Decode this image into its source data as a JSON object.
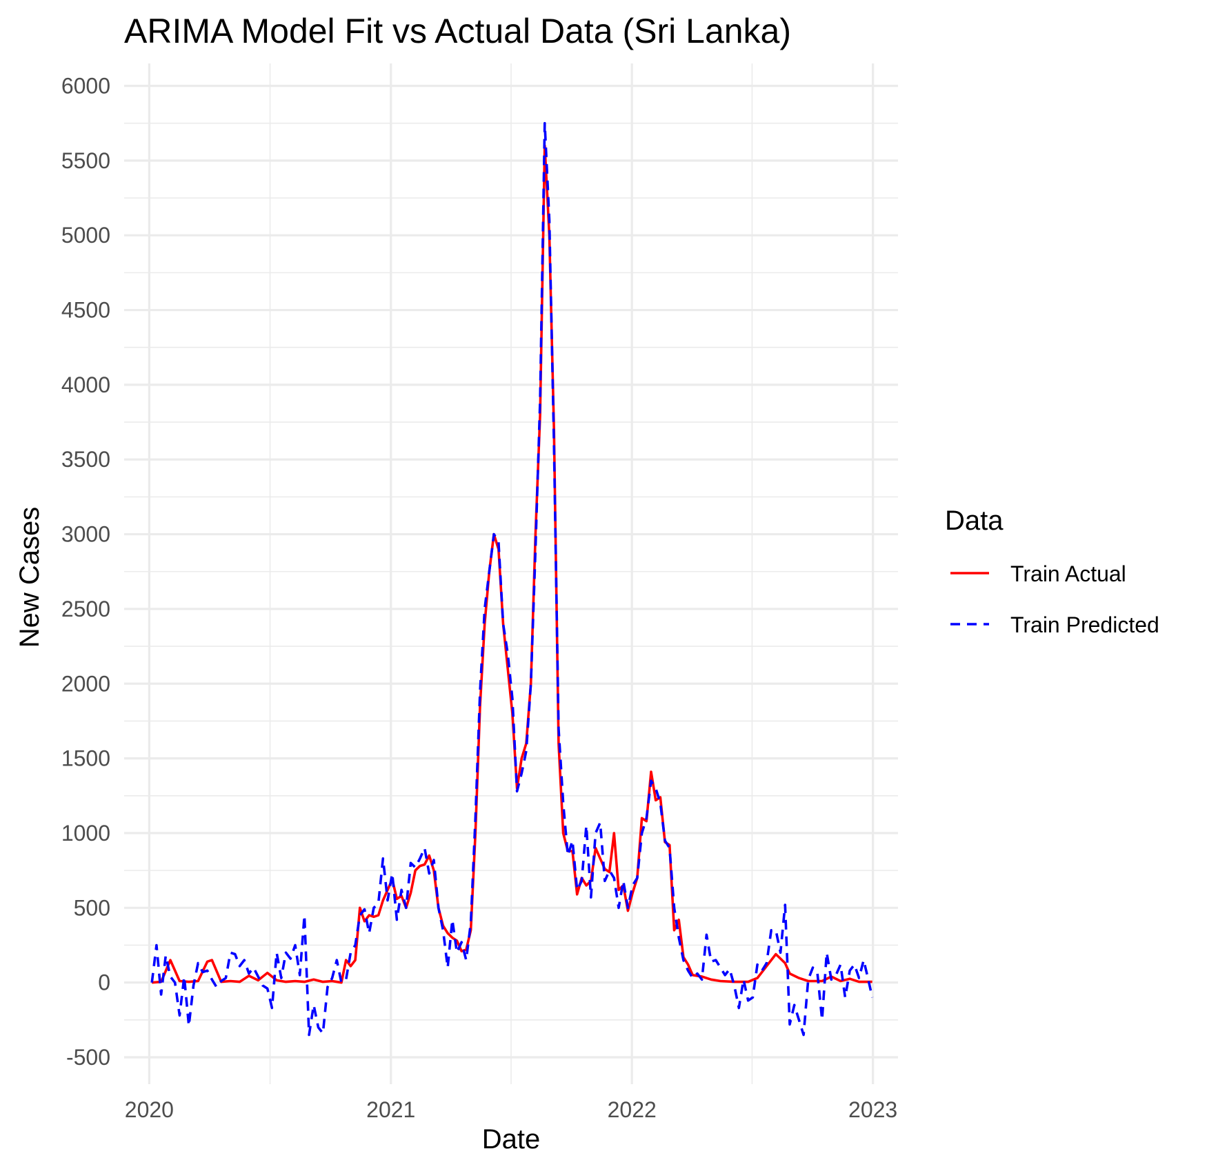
{
  "chart_data": {
    "type": "line",
    "title": "ARIMA Model Fit vs Actual Data (Sri Lanka)",
    "xlabel": "Date",
    "ylabel": "New Cases",
    "x_ticks": [
      "2020",
      "2021",
      "2022",
      "2023"
    ],
    "y_ticks": [
      "-500",
      "0",
      "500",
      "1000",
      "1500",
      "2000",
      "2500",
      "3000",
      "3500",
      "4000",
      "4500",
      "5000",
      "5500",
      "6000"
    ],
    "xlim": [
      "2019-11-24",
      "2023-02-08"
    ],
    "ylim": [
      -680,
      6150
    ],
    "grid": true,
    "legend": {
      "title": "Data",
      "position": "right"
    },
    "series": [
      {
        "name": "Train Actual",
        "color": "#ff0000",
        "linestyle": "solid",
        "points": [
          [
            "2020-01-05",
            0
          ],
          [
            "2020-01-19",
            5
          ],
          [
            "2020-02-02",
            150
          ],
          [
            "2020-02-16",
            10
          ],
          [
            "2020-03-01",
            5
          ],
          [
            "2020-03-15",
            10
          ],
          [
            "2020-03-29",
            140
          ],
          [
            "2020-04-05",
            150
          ],
          [
            "2020-04-19",
            5
          ],
          [
            "2020-05-03",
            10
          ],
          [
            "2020-05-17",
            5
          ],
          [
            "2020-05-31",
            45
          ],
          [
            "2020-06-14",
            15
          ],
          [
            "2020-06-28",
            65
          ],
          [
            "2020-07-12",
            15
          ],
          [
            "2020-07-26",
            5
          ],
          [
            "2020-08-09",
            10
          ],
          [
            "2020-08-23",
            5
          ],
          [
            "2020-09-06",
            20
          ],
          [
            "2020-09-20",
            5
          ],
          [
            "2020-10-04",
            10
          ],
          [
            "2020-10-18",
            0
          ],
          [
            "2020-10-25",
            150
          ],
          [
            "2020-11-01",
            110
          ],
          [
            "2020-11-08",
            150
          ],
          [
            "2020-11-15",
            500
          ],
          [
            "2020-11-22",
            410
          ],
          [
            "2020-11-29",
            450
          ],
          [
            "2020-12-06",
            440
          ],
          [
            "2020-12-13",
            450
          ],
          [
            "2020-12-20",
            550
          ],
          [
            "2020-12-27",
            620
          ],
          [
            "2021-01-03",
            690
          ],
          [
            "2021-01-10",
            560
          ],
          [
            "2021-01-17",
            580
          ],
          [
            "2021-01-24",
            500
          ],
          [
            "2021-01-31",
            600
          ],
          [
            "2021-02-07",
            750
          ],
          [
            "2021-02-14",
            780
          ],
          [
            "2021-02-21",
            790
          ],
          [
            "2021-02-28",
            850
          ],
          [
            "2021-03-07",
            750
          ],
          [
            "2021-03-14",
            500
          ],
          [
            "2021-03-21",
            380
          ],
          [
            "2021-03-28",
            330
          ],
          [
            "2021-04-04",
            300
          ],
          [
            "2021-04-11",
            280
          ],
          [
            "2021-04-18",
            210
          ],
          [
            "2021-04-25",
            220
          ],
          [
            "2021-05-02",
            350
          ],
          [
            "2021-05-09",
            1000
          ],
          [
            "2021-05-16",
            1850
          ],
          [
            "2021-05-23",
            2400
          ],
          [
            "2021-05-30",
            2750
          ],
          [
            "2021-06-06",
            3000
          ],
          [
            "2021-06-13",
            2900
          ],
          [
            "2021-06-20",
            2400
          ],
          [
            "2021-06-27",
            2100
          ],
          [
            "2021-07-04",
            1800
          ],
          [
            "2021-07-11",
            1300
          ],
          [
            "2021-07-18",
            1500
          ],
          [
            "2021-07-25",
            1600
          ],
          [
            "2021-08-01",
            2000
          ],
          [
            "2021-08-08",
            3000
          ],
          [
            "2021-08-15",
            3800
          ],
          [
            "2021-08-22",
            5600
          ],
          [
            "2021-08-29",
            5000
          ],
          [
            "2021-09-05",
            3700
          ],
          [
            "2021-09-12",
            1600
          ],
          [
            "2021-09-19",
            1000
          ],
          [
            "2021-09-26",
            880
          ],
          [
            "2021-10-03",
            880
          ],
          [
            "2021-10-10",
            590
          ],
          [
            "2021-10-17",
            700
          ],
          [
            "2021-10-24",
            650
          ],
          [
            "2021-10-31",
            680
          ],
          [
            "2021-11-07",
            900
          ],
          [
            "2021-11-14",
            830
          ],
          [
            "2021-11-21",
            760
          ],
          [
            "2021-11-28",
            740
          ],
          [
            "2021-12-05",
            1000
          ],
          [
            "2021-12-12",
            620
          ],
          [
            "2021-12-19",
            650
          ],
          [
            "2021-12-26",
            480
          ],
          [
            "2022-01-02",
            600
          ],
          [
            "2022-01-09",
            700
          ],
          [
            "2022-01-16",
            1100
          ],
          [
            "2022-01-23",
            1080
          ],
          [
            "2022-01-30",
            1410
          ],
          [
            "2022-02-06",
            1220
          ],
          [
            "2022-02-13",
            1240
          ],
          [
            "2022-02-20",
            940
          ],
          [
            "2022-02-27",
            920
          ],
          [
            "2022-03-06",
            350
          ],
          [
            "2022-03-13",
            420
          ],
          [
            "2022-03-20",
            170
          ],
          [
            "2022-03-27",
            120
          ],
          [
            "2022-04-03",
            50
          ],
          [
            "2022-04-17",
            40
          ],
          [
            "2022-05-01",
            20
          ],
          [
            "2022-05-15",
            10
          ],
          [
            "2022-06-05",
            5
          ],
          [
            "2022-06-26",
            5
          ],
          [
            "2022-07-10",
            30
          ],
          [
            "2022-07-24",
            110
          ],
          [
            "2022-08-07",
            190
          ],
          [
            "2022-08-21",
            130
          ],
          [
            "2022-08-28",
            60
          ],
          [
            "2022-09-11",
            30
          ],
          [
            "2022-09-25",
            10
          ],
          [
            "2022-10-16",
            10
          ],
          [
            "2022-10-30",
            40
          ],
          [
            "2022-11-13",
            10
          ],
          [
            "2022-11-27",
            25
          ],
          [
            "2022-12-11",
            5
          ],
          [
            "2022-12-31",
            5
          ]
        ]
      },
      {
        "name": "Train Predicted",
        "color": "#0000ff",
        "linestyle": "dashed",
        "points": [
          [
            "2020-01-05",
            0
          ],
          [
            "2020-01-12",
            250
          ],
          [
            "2020-01-19",
            -80
          ],
          [
            "2020-01-26",
            180
          ],
          [
            "2020-02-02",
            40
          ],
          [
            "2020-02-09",
            0
          ],
          [
            "2020-02-16",
            -220
          ],
          [
            "2020-02-23",
            40
          ],
          [
            "2020-03-01",
            -290
          ],
          [
            "2020-03-08",
            -20
          ],
          [
            "2020-03-15",
            130
          ],
          [
            "2020-03-22",
            70
          ],
          [
            "2020-03-29",
            80
          ],
          [
            "2020-04-05",
            20
          ],
          [
            "2020-04-12",
            -30
          ],
          [
            "2020-04-19",
            10
          ],
          [
            "2020-04-26",
            30
          ],
          [
            "2020-05-03",
            200
          ],
          [
            "2020-05-10",
            190
          ],
          [
            "2020-05-17",
            110
          ],
          [
            "2020-05-24",
            150
          ],
          [
            "2020-05-31",
            60
          ],
          [
            "2020-06-07",
            100
          ],
          [
            "2020-06-14",
            40
          ],
          [
            "2020-06-21",
            -20
          ],
          [
            "2020-06-28",
            -40
          ],
          [
            "2020-07-05",
            -170
          ],
          [
            "2020-07-12",
            200
          ],
          [
            "2020-07-19",
            30
          ],
          [
            "2020-07-26",
            200
          ],
          [
            "2020-08-02",
            160
          ],
          [
            "2020-08-09",
            250
          ],
          [
            "2020-08-16",
            50
          ],
          [
            "2020-08-23",
            450
          ],
          [
            "2020-08-30",
            -350
          ],
          [
            "2020-09-06",
            -150
          ],
          [
            "2020-09-13",
            -300
          ],
          [
            "2020-09-20",
            -340
          ],
          [
            "2020-09-27",
            -30
          ],
          [
            "2020-10-04",
            30
          ],
          [
            "2020-10-11",
            150
          ],
          [
            "2020-10-18",
            0
          ],
          [
            "2020-10-25",
            20
          ],
          [
            "2020-11-01",
            200
          ],
          [
            "2020-11-08",
            250
          ],
          [
            "2020-11-15",
            450
          ],
          [
            "2020-11-22",
            490
          ],
          [
            "2020-11-29",
            330
          ],
          [
            "2020-12-06",
            500
          ],
          [
            "2020-12-13",
            530
          ],
          [
            "2020-12-20",
            830
          ],
          [
            "2020-12-27",
            550
          ],
          [
            "2021-01-03",
            730
          ],
          [
            "2021-01-10",
            420
          ],
          [
            "2021-01-17",
            620
          ],
          [
            "2021-01-24",
            500
          ],
          [
            "2021-01-31",
            800
          ],
          [
            "2021-02-07",
            770
          ],
          [
            "2021-02-14",
            830
          ],
          [
            "2021-02-21",
            900
          ],
          [
            "2021-02-28",
            730
          ],
          [
            "2021-03-07",
            820
          ],
          [
            "2021-03-14",
            500
          ],
          [
            "2021-03-21",
            350
          ],
          [
            "2021-03-28",
            100
          ],
          [
            "2021-04-04",
            420
          ],
          [
            "2021-04-11",
            200
          ],
          [
            "2021-04-18",
            270
          ],
          [
            "2021-04-25",
            150
          ],
          [
            "2021-05-02",
            400
          ],
          [
            "2021-05-09",
            1100
          ],
          [
            "2021-05-16",
            1950
          ],
          [
            "2021-05-23",
            2500
          ],
          [
            "2021-05-30",
            2750
          ],
          [
            "2021-06-06",
            3000
          ],
          [
            "2021-06-13",
            2950
          ],
          [
            "2021-06-20",
            2400
          ],
          [
            "2021-06-27",
            2200
          ],
          [
            "2021-07-04",
            1900
          ],
          [
            "2021-07-11",
            1280
          ],
          [
            "2021-07-18",
            1400
          ],
          [
            "2021-07-25",
            1550
          ],
          [
            "2021-08-01",
            2000
          ],
          [
            "2021-08-08",
            2900
          ],
          [
            "2021-08-15",
            3900
          ],
          [
            "2021-08-22",
            5750
          ],
          [
            "2021-08-29",
            5100
          ],
          [
            "2021-09-05",
            3600
          ],
          [
            "2021-09-12",
            1700
          ],
          [
            "2021-09-19",
            1200
          ],
          [
            "2021-09-26",
            850
          ],
          [
            "2021-10-03",
            950
          ],
          [
            "2021-10-10",
            620
          ],
          [
            "2021-10-17",
            680
          ],
          [
            "2021-10-24",
            1050
          ],
          [
            "2021-10-31",
            570
          ],
          [
            "2021-11-07",
            1000
          ],
          [
            "2021-11-14",
            1070
          ],
          [
            "2021-11-21",
            680
          ],
          [
            "2021-11-28",
            750
          ],
          [
            "2021-12-05",
            700
          ],
          [
            "2021-12-12",
            500
          ],
          [
            "2021-12-19",
            680
          ],
          [
            "2021-12-26",
            500
          ],
          [
            "2022-01-02",
            650
          ],
          [
            "2022-01-09",
            700
          ],
          [
            "2022-01-16",
            1000
          ],
          [
            "2022-01-23",
            1100
          ],
          [
            "2022-01-30",
            1350
          ],
          [
            "2022-02-06",
            1300
          ],
          [
            "2022-02-13",
            1200
          ],
          [
            "2022-02-20",
            950
          ],
          [
            "2022-02-27",
            900
          ],
          [
            "2022-03-06",
            500
          ],
          [
            "2022-03-13",
            300
          ],
          [
            "2022-03-20",
            150
          ],
          [
            "2022-03-27",
            80
          ],
          [
            "2022-04-03",
            30
          ],
          [
            "2022-04-10",
            60
          ],
          [
            "2022-04-17",
            20
          ],
          [
            "2022-04-24",
            320
          ],
          [
            "2022-05-01",
            140
          ],
          [
            "2022-05-08",
            150
          ],
          [
            "2022-05-15",
            100
          ],
          [
            "2022-05-22",
            50
          ],
          [
            "2022-05-29",
            90
          ],
          [
            "2022-06-05",
            -20
          ],
          [
            "2022-06-12",
            -170
          ],
          [
            "2022-06-19",
            20
          ],
          [
            "2022-06-26",
            -120
          ],
          [
            "2022-07-03",
            -100
          ],
          [
            "2022-07-10",
            120
          ],
          [
            "2022-07-17",
            80
          ],
          [
            "2022-07-24",
            130
          ],
          [
            "2022-07-31",
            350
          ],
          [
            "2022-08-07",
            350
          ],
          [
            "2022-08-14",
            200
          ],
          [
            "2022-08-21",
            520
          ],
          [
            "2022-08-28",
            -280
          ],
          [
            "2022-09-04",
            -150
          ],
          [
            "2022-09-11",
            -250
          ],
          [
            "2022-09-18",
            -350
          ],
          [
            "2022-09-25",
            20
          ],
          [
            "2022-10-02",
            100
          ],
          [
            "2022-10-09",
            60
          ],
          [
            "2022-10-16",
            -250
          ],
          [
            "2022-10-23",
            200
          ],
          [
            "2022-10-30",
            20
          ],
          [
            "2022-11-06",
            50
          ],
          [
            "2022-11-13",
            120
          ],
          [
            "2022-11-20",
            -100
          ],
          [
            "2022-11-27",
            80
          ],
          [
            "2022-12-04",
            120
          ],
          [
            "2022-12-11",
            30
          ],
          [
            "2022-12-18",
            150
          ],
          [
            "2022-12-25",
            20
          ],
          [
            "2022-12-31",
            -100
          ]
        ]
      }
    ]
  }
}
